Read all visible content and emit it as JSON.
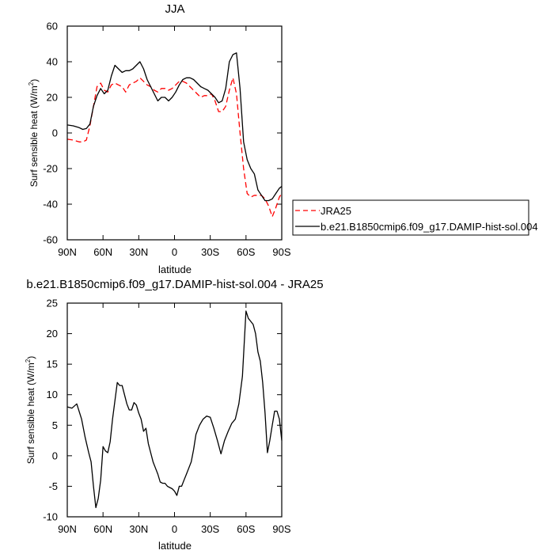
{
  "chart_data": [
    {
      "type": "line",
      "title": "JJA",
      "xlabel": "latitude",
      "ylabel": "Surf sensible heat (W/m²)",
      "ylabel_main": "Surf sensible heat (W/m",
      "ylabel_sup": "2",
      "ylabel_close": ")",
      "xlim": [
        90,
        -90
      ],
      "ylim": [
        -60,
        60
      ],
      "xticks": [
        90,
        60,
        30,
        0,
        -30,
        -60,
        -90
      ],
      "xtick_labels": [
        "90N",
        "60N",
        "30N",
        "0",
        "30S",
        "60S",
        "90S"
      ],
      "yticks": [
        -60,
        -40,
        -20,
        0,
        20,
        40,
        60
      ],
      "ytick_labels": [
        "-60",
        "-40",
        "-20",
        "0",
        "20",
        "40",
        "60"
      ],
      "legend_position": "right-bottom-outside",
      "x": [
        90,
        85,
        80,
        77,
        74,
        71,
        68,
        65,
        62,
        59,
        56,
        53,
        50,
        47,
        44,
        41,
        38,
        35,
        32,
        29,
        26,
        23,
        20,
        17,
        14,
        11,
        8,
        5,
        2,
        -1,
        -4,
        -7,
        -10,
        -13,
        -16,
        -19,
        -22,
        -25,
        -28,
        -31,
        -34,
        -37,
        -40,
        -43,
        -46,
        -49,
        -52,
        -55,
        -58,
        -61,
        -64,
        -67,
        -70,
        -73,
        -76,
        -79,
        -82,
        -85,
        -88,
        -90
      ],
      "series": [
        {
          "name": "JRA25",
          "color": "#ff0000",
          "dash": true,
          "values": [
            -3.5,
            -4,
            -5,
            -5,
            -4,
            4,
            15,
            26,
            28,
            24,
            23,
            27,
            28,
            27,
            26,
            23,
            27,
            28,
            29,
            31,
            29,
            27,
            26,
            24,
            23,
            25,
            25,
            24,
            25,
            27,
            29,
            29,
            28,
            26,
            24,
            22,
            20,
            21,
            21,
            22,
            18,
            12,
            12,
            15,
            24,
            31,
            22,
            0,
            -20,
            -34,
            -36,
            -35,
            -35,
            -35,
            -37,
            -41,
            -47,
            -42,
            -36,
            -34
          ]
        },
        {
          "name": "b.e21.B1850cmip6.f09_g17.DAMIP-hist-sol.004",
          "color": "#000000",
          "dash": false,
          "values": [
            4.5,
            4,
            3,
            2,
            2.5,
            5,
            15,
            21,
            25,
            22,
            24,
            32,
            38,
            36,
            34,
            35,
            35,
            36,
            38,
            40,
            36,
            30,
            26,
            22,
            18,
            20,
            20,
            18,
            20,
            23,
            27,
            30,
            31,
            31,
            30,
            28,
            26,
            25,
            24,
            22,
            20,
            17,
            18,
            25,
            40,
            44,
            45,
            25,
            -5,
            -15,
            -20,
            -23,
            -32,
            -35,
            -38,
            -38,
            -37,
            -34,
            -31,
            -30
          ]
        }
      ]
    },
    {
      "type": "line",
      "title": "b.e21.B1850cmip6.f09_g17.DAMIP-hist-sol.004 - JRA25",
      "xlabel": "latitude",
      "ylabel": "Surf sensible heat (W/m²)",
      "ylabel_main": "Surf sensible heat (W/m",
      "ylabel_sup": "2",
      "ylabel_close": ")",
      "xlim": [
        90,
        -90
      ],
      "ylim": [
        -10,
        25
      ],
      "xticks": [
        90,
        60,
        30,
        0,
        -30,
        -60,
        -90
      ],
      "xtick_labels": [
        "90N",
        "60N",
        "30N",
        "0",
        "30S",
        "60S",
        "90S"
      ],
      "yticks": [
        -10,
        -5,
        0,
        5,
        10,
        15,
        20,
        25
      ],
      "ytick_labels": [
        "-10",
        "-5",
        "0",
        "5",
        "10",
        "15",
        "20",
        "25"
      ],
      "x": [
        90,
        86,
        82,
        78,
        75,
        72,
        70,
        68,
        66,
        64,
        62,
        60,
        58,
        56,
        54,
        52,
        50,
        48,
        46,
        44,
        42,
        40,
        38,
        36,
        34,
        32,
        30,
        28,
        26,
        24,
        22,
        20,
        18,
        16,
        14,
        12,
        10,
        8,
        6,
        4,
        2,
        0,
        -2,
        -4,
        -6,
        -8,
        -10,
        -12,
        -14,
        -16,
        -18,
        -21,
        -24,
        -27,
        -30,
        -33,
        -36,
        -39,
        -42,
        -45,
        -48,
        -51,
        -54,
        -57,
        -60,
        -62,
        -64,
        -66,
        -68,
        -70,
        -72,
        -74,
        -76,
        -78,
        -80,
        -82,
        -84,
        -86,
        -88,
        -90
      ],
      "series": [
        {
          "name": "",
          "color": "#000000",
          "dash": false,
          "values": [
            8,
            7.8,
            8.5,
            6,
            3,
            0.5,
            -1,
            -5,
            -8.5,
            -7,
            -4,
            1.5,
            0.8,
            0.5,
            2.3,
            6,
            9,
            12,
            11.5,
            11.5,
            10,
            8.5,
            7.5,
            7.5,
            8.7,
            8.3,
            7,
            6,
            4,
            4.5,
            2,
            0.5,
            -1,
            -2,
            -3,
            -4.3,
            -4.5,
            -4.5,
            -5,
            -5.2,
            -5.4,
            -5.8,
            -6.5,
            -5,
            -5,
            -4,
            -3,
            -2,
            -1,
            1,
            3.5,
            5,
            6,
            6.5,
            6.3,
            4.5,
            2.5,
            0.3,
            2.5,
            4,
            5.3,
            6,
            8.5,
            13,
            23.7,
            22.5,
            22,
            21.5,
            20,
            17,
            15.5,
            12,
            7,
            0.5,
            2.5,
            5,
            7.3,
            7.3,
            6,
            2.5
          ]
        }
      ]
    }
  ]
}
